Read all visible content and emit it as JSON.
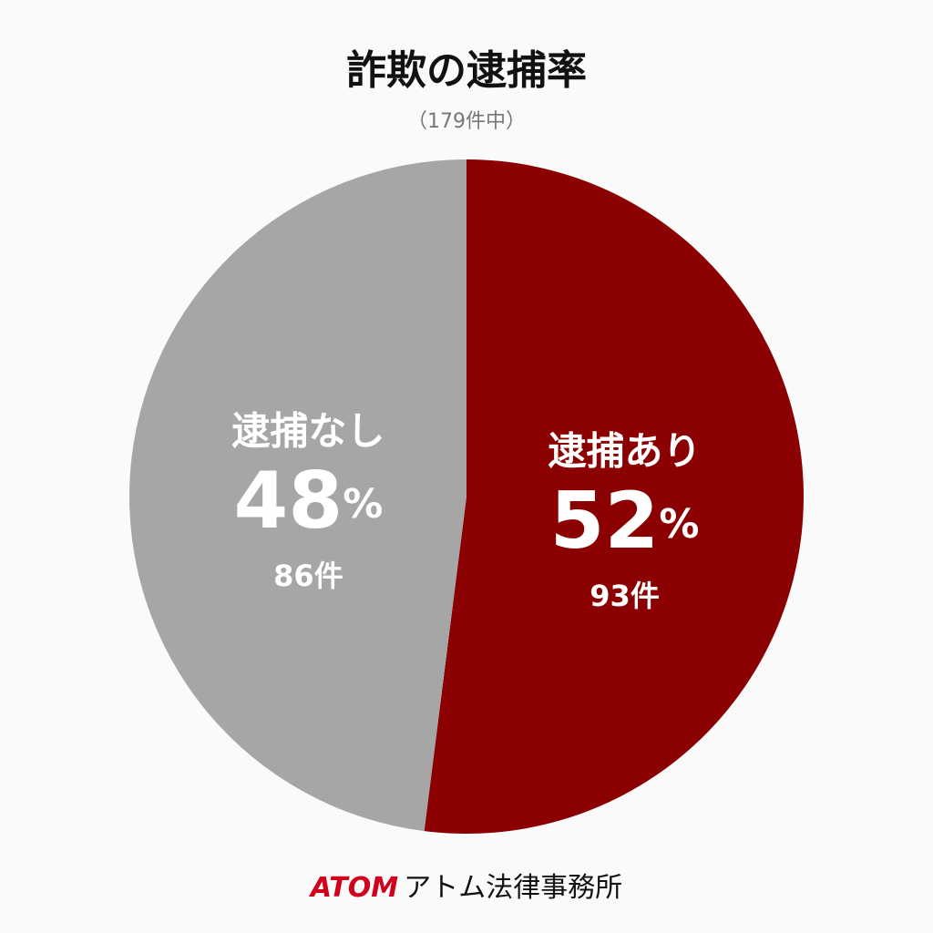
{
  "chart_data": {
    "type": "pie",
    "title": "詐欺の逮捕率",
    "subtitle": "（179件中）",
    "categories": [
      "逮捕あり",
      "逮捕なし"
    ],
    "values": [
      52,
      48
    ],
    "value_labels": [
      "52%",
      "48%"
    ],
    "counts": [
      93,
      86
    ],
    "count_labels": [
      "93件",
      "86件"
    ],
    "colors": [
      "#8b0000",
      "#a6a6a6"
    ]
  },
  "footer": {
    "brand": "ATOM",
    "name": "アトム法律事務所"
  }
}
